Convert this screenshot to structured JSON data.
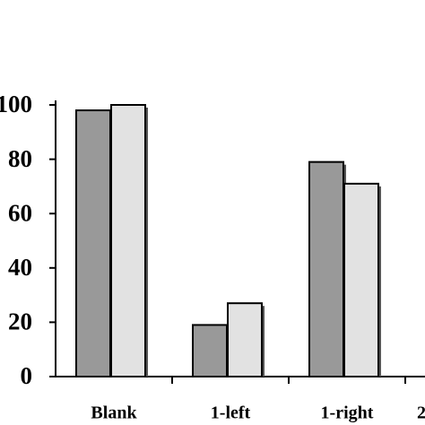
{
  "chart_data": {
    "type": "bar",
    "categories": [
      "Blank",
      "1-left",
      "1-right",
      "2"
    ],
    "series": [
      {
        "color": "#999999",
        "values": [
          98,
          19,
          79,
          null
        ]
      },
      {
        "color": "#e2e2e2",
        "values": [
          100,
          27,
          71,
          null
        ]
      }
    ],
    "ylim": [
      0,
      100
    ],
    "yticks": [
      0,
      20,
      40,
      60,
      80,
      100
    ]
  }
}
